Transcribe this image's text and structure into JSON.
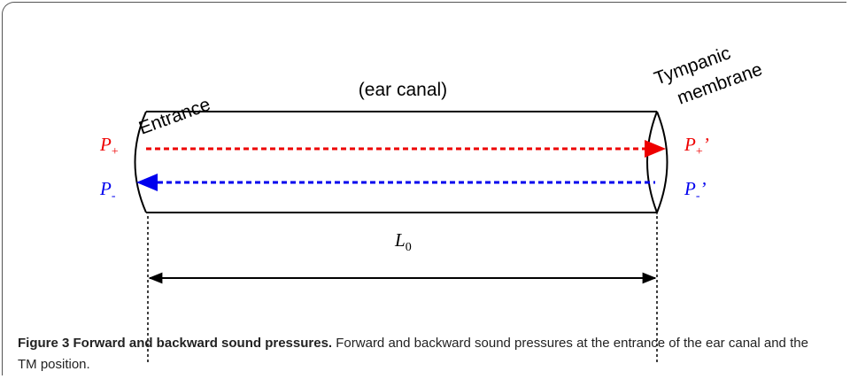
{
  "labels": {
    "entrance": "Entrance",
    "canal": "(ear canal)",
    "tympanic": [
      "Tympanic",
      "membrane"
    ]
  },
  "pressures": {
    "forward_in": {
      "symbol": "P",
      "sub": "+"
    },
    "backward_in": {
      "symbol": "P",
      "sub": "-"
    },
    "forward_out": {
      "symbol": "P",
      "sub": "+",
      "prime": "’"
    },
    "backward_out": {
      "symbol": "P",
      "sub": "-",
      "prime": "’"
    }
  },
  "dimension": {
    "symbol": "L",
    "sub": "0"
  },
  "caption": {
    "title": "Figure 3 Forward and backward sound pressures.",
    "text": "Forward and backward sound pressures at the entrance of the ear canal and the TM position."
  }
}
